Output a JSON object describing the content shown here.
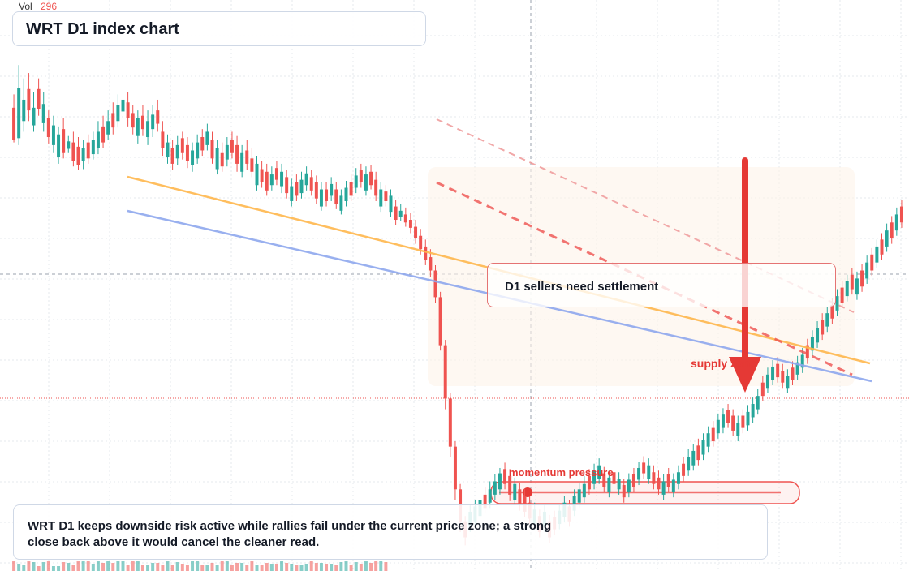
{
  "header": {
    "vol_label": "Vol",
    "vol_value": "296",
    "title": "WRT D1 index chart"
  },
  "callout": {
    "text": "D1 sellers need settlement"
  },
  "annotations": {
    "supply": "supply zone",
    "momentum": "momentum pressure"
  },
  "summary": {
    "text": "WRT D1 keeps downside risk active while rallies fail under the current price zone; a strong close back above it would cancel the cleaner read."
  },
  "colors": {
    "up": "#26a69a",
    "down": "#ef5350",
    "trend_orange": "#ffb74d",
    "trend_blue": "#8fa8ee",
    "arrow": "#e53935"
  },
  "chart_data": {
    "type": "candlestick",
    "ylim": [
      0,
      1000
    ],
    "candles": [
      [
        1,
        805,
        865,
        800,
        890,
        "down"
      ],
      [
        2,
        808,
        902,
        795,
        945,
        "up"
      ],
      [
        3,
        840,
        880,
        820,
        920,
        "up"
      ],
      [
        4,
        860,
        900,
        840,
        930,
        "down"
      ],
      [
        5,
        832,
        865,
        820,
        895,
        "up"
      ],
      [
        6,
        862,
        900,
        850,
        920,
        "down"
      ],
      [
        7,
        836,
        872,
        820,
        895,
        "up"
      ],
      [
        8,
        810,
        846,
        798,
        860,
        "down"
      ],
      [
        9,
        795,
        832,
        780,
        850,
        "up"
      ],
      [
        10,
        772,
        815,
        760,
        830,
        "up"
      ],
      [
        11,
        780,
        825,
        770,
        845,
        "down"
      ],
      [
        12,
        788,
        802,
        780,
        812,
        "up"
      ],
      [
        13,
        765,
        800,
        755,
        820,
        "down"
      ],
      [
        14,
        758,
        792,
        748,
        810,
        "down"
      ],
      [
        15,
        765,
        790,
        750,
        805,
        "up"
      ],
      [
        16,
        770,
        800,
        760,
        815,
        "down"
      ],
      [
        17,
        778,
        805,
        768,
        820,
        "up"
      ],
      [
        18,
        790,
        820,
        778,
        840,
        "up"
      ],
      [
        19,
        800,
        830,
        790,
        850,
        "down"
      ],
      [
        20,
        815,
        840,
        805,
        860,
        "up"
      ],
      [
        21,
        828,
        855,
        815,
        875,
        "down"
      ],
      [
        22,
        840,
        870,
        828,
        890,
        "up"
      ],
      [
        23,
        858,
        880,
        845,
        900,
        "up"
      ],
      [
        24,
        845,
        875,
        830,
        895,
        "down"
      ],
      [
        25,
        828,
        855,
        815,
        870,
        "down"
      ],
      [
        26,
        812,
        845,
        798,
        860,
        "up"
      ],
      [
        27,
        825,
        850,
        812,
        870,
        "down"
      ],
      [
        28,
        810,
        840,
        795,
        860,
        "up"
      ],
      [
        29,
        825,
        852,
        810,
        870,
        "up"
      ],
      [
        30,
        835,
        860,
        820,
        880,
        "down"
      ],
      [
        31,
        790,
        820,
        775,
        840,
        "down"
      ],
      [
        32,
        772,
        800,
        760,
        815,
        "up"
      ],
      [
        33,
        760,
        790,
        748,
        805,
        "down"
      ],
      [
        34,
        770,
        795,
        758,
        812,
        "up"
      ],
      [
        35,
        780,
        808,
        768,
        820,
        "down"
      ],
      [
        36,
        765,
        795,
        752,
        810,
        "down"
      ],
      [
        37,
        758,
        785,
        745,
        800,
        "up"
      ],
      [
        38,
        770,
        800,
        760,
        815,
        "up"
      ],
      [
        39,
        785,
        810,
        775,
        825,
        "down"
      ],
      [
        40,
        795,
        820,
        785,
        835,
        "up"
      ],
      [
        41,
        770,
        805,
        760,
        820,
        "down"
      ],
      [
        42,
        750,
        790,
        740,
        805,
        "up"
      ],
      [
        43,
        755,
        780,
        745,
        800,
        "down"
      ],
      [
        44,
        768,
        795,
        755,
        810,
        "up"
      ],
      [
        45,
        780,
        805,
        770,
        820,
        "down"
      ],
      [
        46,
        760,
        795,
        745,
        812,
        "down"
      ],
      [
        47,
        745,
        780,
        735,
        795,
        "up"
      ],
      [
        48,
        760,
        785,
        748,
        805,
        "down"
      ],
      [
        49,
        745,
        770,
        735,
        790,
        "down"
      ],
      [
        50,
        720,
        760,
        710,
        775,
        "up"
      ],
      [
        51,
        725,
        750,
        715,
        765,
        "down"
      ],
      [
        52,
        710,
        745,
        700,
        760,
        "down"
      ],
      [
        53,
        720,
        740,
        710,
        755,
        "up"
      ],
      [
        54,
        730,
        752,
        720,
        765,
        "down"
      ],
      [
        55,
        718,
        745,
        705,
        760,
        "up"
      ],
      [
        56,
        705,
        735,
        695,
        748,
        "down"
      ],
      [
        57,
        690,
        718,
        680,
        732,
        "up"
      ],
      [
        58,
        700,
        725,
        690,
        740,
        "down"
      ],
      [
        59,
        705,
        730,
        695,
        745,
        "up"
      ],
      [
        60,
        720,
        742,
        710,
        755,
        "up"
      ],
      [
        61,
        710,
        735,
        700,
        748,
        "down"
      ],
      [
        62,
        695,
        725,
        685,
        738,
        "down"
      ],
      [
        63,
        680,
        712,
        672,
        725,
        "up"
      ],
      [
        64,
        690,
        712,
        680,
        725,
        "down"
      ],
      [
        65,
        700,
        722,
        690,
        735,
        "up"
      ],
      [
        66,
        685,
        712,
        675,
        725,
        "down"
      ],
      [
        67,
        672,
        700,
        665,
        712,
        "up"
      ],
      [
        68,
        690,
        715,
        680,
        728,
        "up"
      ],
      [
        69,
        700,
        725,
        690,
        740,
        "down"
      ],
      [
        70,
        715,
        738,
        705,
        752,
        "up"
      ],
      [
        71,
        725,
        748,
        715,
        760,
        "down"
      ],
      [
        72,
        710,
        740,
        700,
        755,
        "up"
      ],
      [
        73,
        720,
        745,
        712,
        758,
        "down"
      ],
      [
        74,
        700,
        730,
        690,
        745,
        "down"
      ],
      [
        75,
        680,
        712,
        670,
        725,
        "up"
      ],
      [
        76,
        690,
        708,
        680,
        720,
        "down"
      ],
      [
        77,
        670,
        700,
        660,
        712,
        "up"
      ],
      [
        78,
        655,
        680,
        645,
        692,
        "down"
      ],
      [
        79,
        660,
        672,
        652,
        685,
        "up"
      ],
      [
        80,
        650,
        665,
        642,
        678,
        "down"
      ],
      [
        81,
        640,
        655,
        630,
        668,
        "down"
      ],
      [
        82,
        620,
        642,
        610,
        655,
        "down"
      ],
      [
        83,
        600,
        625,
        590,
        638,
        "down"
      ],
      [
        84,
        580,
        605,
        570,
        618,
        "down"
      ],
      [
        85,
        560,
        585,
        548,
        600,
        "down"
      ],
      [
        86,
        510,
        560,
        500,
        570,
        "down"
      ],
      [
        87,
        420,
        510,
        410,
        520,
        "down"
      ],
      [
        88,
        320,
        420,
        300,
        430,
        "down"
      ],
      [
        89,
        230,
        320,
        210,
        330,
        "down"
      ],
      [
        90,
        150,
        230,
        130,
        240,
        "down"
      ],
      [
        91,
        90,
        150,
        70,
        160,
        "down"
      ],
      [
        92,
        60,
        90,
        45,
        100,
        "down"
      ],
      [
        93,
        80,
        108,
        70,
        120,
        "up"
      ],
      [
        94,
        90,
        118,
        80,
        130,
        "up"
      ],
      [
        95,
        100,
        130,
        90,
        145,
        "up"
      ],
      [
        96,
        115,
        140,
        105,
        155,
        "down"
      ],
      [
        97,
        125,
        150,
        115,
        165,
        "up"
      ],
      [
        98,
        140,
        165,
        130,
        178,
        "up"
      ],
      [
        99,
        150,
        180,
        140,
        190,
        "up"
      ],
      [
        100,
        160,
        188,
        150,
        200,
        "down"
      ],
      [
        101,
        140,
        175,
        128,
        188,
        "down"
      ],
      [
        102,
        130,
        160,
        120,
        172,
        "up"
      ],
      [
        103,
        120,
        150,
        110,
        162,
        "down"
      ],
      [
        104,
        108,
        138,
        98,
        150,
        "down"
      ],
      [
        105,
        95,
        125,
        85,
        138,
        "down"
      ],
      [
        106,
        85,
        112,
        75,
        125,
        "up"
      ],
      [
        107,
        70,
        100,
        60,
        112,
        "down"
      ],
      [
        108,
        80,
        108,
        70,
        120,
        "up"
      ],
      [
        109,
        60,
        90,
        50,
        102,
        "down"
      ],
      [
        110,
        75,
        98,
        65,
        110,
        "down"
      ],
      [
        111,
        85,
        110,
        75,
        122,
        "up"
      ],
      [
        112,
        98,
        125,
        88,
        138,
        "up"
      ],
      [
        113,
        90,
        118,
        80,
        130,
        "down"
      ],
      [
        114,
        110,
        138,
        100,
        150,
        "up"
      ],
      [
        115,
        125,
        150,
        115,
        162,
        "up"
      ],
      [
        116,
        135,
        160,
        125,
        175,
        "up"
      ],
      [
        117,
        150,
        175,
        140,
        188,
        "down"
      ],
      [
        118,
        160,
        185,
        150,
        198,
        "up"
      ],
      [
        119,
        170,
        195,
        160,
        208,
        "up"
      ],
      [
        120,
        155,
        180,
        145,
        192,
        "down"
      ],
      [
        121,
        145,
        172,
        135,
        185,
        "up"
      ],
      [
        122,
        160,
        182,
        150,
        195,
        "down"
      ],
      [
        123,
        150,
        170,
        140,
        182,
        "up"
      ],
      [
        124,
        135,
        158,
        125,
        170,
        "down"
      ],
      [
        125,
        145,
        168,
        135,
        180,
        "up"
      ],
      [
        126,
        155,
        178,
        145,
        190,
        "down"
      ],
      [
        127,
        168,
        190,
        158,
        202,
        "up"
      ],
      [
        128,
        180,
        200,
        170,
        212,
        "down"
      ],
      [
        129,
        170,
        195,
        160,
        208,
        "up"
      ],
      [
        130,
        160,
        182,
        150,
        195,
        "down"
      ],
      [
        131,
        150,
        172,
        140,
        185,
        "down"
      ],
      [
        132,
        140,
        165,
        130,
        178,
        "up"
      ],
      [
        133,
        155,
        178,
        145,
        190,
        "down"
      ],
      [
        134,
        145,
        168,
        135,
        180,
        "up"
      ],
      [
        135,
        160,
        182,
        150,
        195,
        "up"
      ],
      [
        136,
        175,
        198,
        165,
        210,
        "down"
      ],
      [
        137,
        185,
        210,
        175,
        225,
        "up"
      ],
      [
        138,
        195,
        222,
        185,
        235,
        "up"
      ],
      [
        139,
        205,
        232,
        195,
        245,
        "down"
      ],
      [
        140,
        215,
        242,
        205,
        255,
        "up"
      ],
      [
        141,
        230,
        255,
        220,
        268,
        "up"
      ],
      [
        142,
        240,
        265,
        230,
        278,
        "down"
      ],
      [
        143,
        255,
        280,
        245,
        292,
        "up"
      ],
      [
        144,
        265,
        290,
        255,
        302,
        "up"
      ],
      [
        145,
        275,
        298,
        265,
        310,
        "down"
      ],
      [
        146,
        260,
        288,
        250,
        300,
        "down"
      ],
      [
        147,
        250,
        275,
        240,
        288,
        "up"
      ],
      [
        148,
        265,
        288,
        255,
        300,
        "down"
      ],
      [
        149,
        270,
        295,
        260,
        308,
        "up"
      ],
      [
        150,
        285,
        310,
        275,
        322,
        "up"
      ],
      [
        151,
        300,
        325,
        290,
        338,
        "up"
      ],
      [
        152,
        325,
        350,
        315,
        362,
        "down"
      ],
      [
        153,
        340,
        365,
        330,
        378,
        "up"
      ],
      [
        154,
        355,
        380,
        345,
        392,
        "up"
      ],
      [
        155,
        360,
        385,
        350,
        398,
        "down"
      ],
      [
        156,
        350,
        372,
        340,
        385,
        "down"
      ],
      [
        157,
        340,
        362,
        330,
        375,
        "up"
      ],
      [
        158,
        355,
        378,
        345,
        390,
        "down"
      ],
      [
        159,
        365,
        388,
        355,
        400,
        "up"
      ],
      [
        160,
        378,
        402,
        368,
        415,
        "up"
      ],
      [
        161,
        395,
        420,
        385,
        432,
        "down"
      ],
      [
        162,
        410,
        435,
        400,
        448,
        "up"
      ],
      [
        163,
        425,
        452,
        415,
        465,
        "up"
      ],
      [
        164,
        440,
        468,
        430,
        480,
        "down"
      ],
      [
        165,
        455,
        480,
        445,
        492,
        "up"
      ],
      [
        166,
        470,
        495,
        460,
        508,
        "down"
      ],
      [
        167,
        485,
        512,
        475,
        525,
        "up"
      ],
      [
        168,
        500,
        528,
        490,
        540,
        "down"
      ],
      [
        169,
        512,
        540,
        502,
        552,
        "up"
      ],
      [
        170,
        525,
        552,
        515,
        565,
        "down"
      ],
      [
        171,
        515,
        545,
        505,
        558,
        "up"
      ],
      [
        172,
        530,
        560,
        520,
        572,
        "down"
      ],
      [
        173,
        545,
        575,
        535,
        588,
        "up"
      ],
      [
        174,
        560,
        590,
        550,
        602,
        "down"
      ],
      [
        175,
        575,
        605,
        565,
        618,
        "up"
      ],
      [
        176,
        590,
        618,
        580,
        630,
        "down"
      ],
      [
        177,
        605,
        635,
        595,
        648,
        "up"
      ],
      [
        178,
        620,
        650,
        610,
        662,
        "down"
      ],
      [
        179,
        635,
        665,
        625,
        678,
        "up"
      ],
      [
        180,
        650,
        680,
        640,
        692,
        "down"
      ]
    ],
    "volume": [
      296
    ],
    "overlays": [
      "trendline",
      "trendline",
      "supply zone",
      "momentum pressure"
    ]
  }
}
